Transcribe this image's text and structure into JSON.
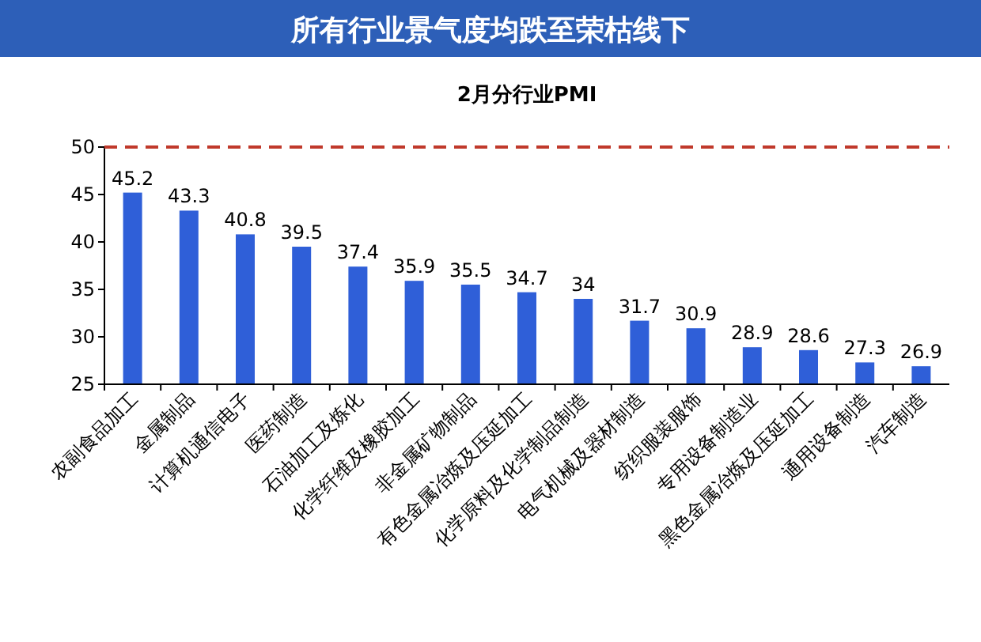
{
  "chart_data": {
    "type": "bar",
    "title": "所有行业景气度均跌至荣枯线下",
    "subtitle": "2月分行业PMI",
    "categories": [
      "农副食品加工",
      "金属制品",
      "计算机通信电子",
      "医药制造",
      "石油加工及炼化",
      "化学纤维及橡胶加工",
      "非金属矿物制品",
      "有色金属冶炼及压延加工",
      "化学原料及化学制品制造",
      "电气机械及器材制造",
      "纺织服装服饰",
      "专用设备制造业",
      "黑色金属冶炼及压延加工",
      "通用设备制造",
      "汽车制造"
    ],
    "values": [
      45.2,
      43.3,
      40.8,
      39.5,
      37.4,
      35.9,
      35.5,
      34.7,
      34,
      31.7,
      30.9,
      28.9,
      28.6,
      27.3,
      26.9
    ],
    "color": "#2f5fd8",
    "data_labels": true,
    "ylim": [
      25,
      50
    ],
    "yticks": [
      25,
      30,
      35,
      40,
      45,
      50
    ],
    "ref_lines": [
      {
        "axis": "y",
        "value": 50,
        "color": "#c0392b",
        "line_style": "dashed"
      }
    ]
  }
}
